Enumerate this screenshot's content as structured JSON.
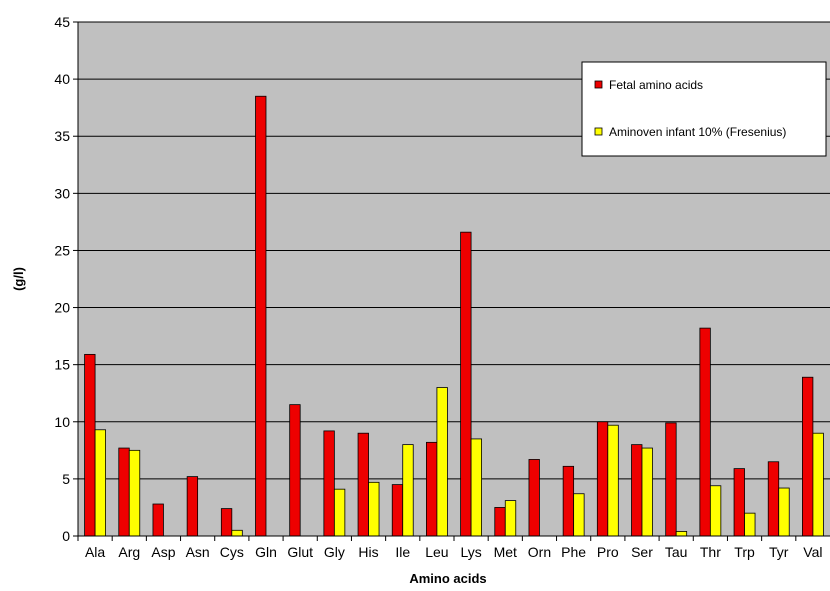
{
  "chart_data": {
    "type": "bar",
    "xlabel": "Amino acids",
    "ylabel": "(g/l)",
    "ylim": [
      0,
      45
    ],
    "yticks": [
      0,
      5,
      10,
      15,
      20,
      25,
      30,
      35,
      40,
      45
    ],
    "grid": true,
    "legend_position": "top-right",
    "categories": [
      "Ala",
      "Arg",
      "Asp",
      "Asn",
      "Cys",
      "Gln",
      "Glut",
      "Gly",
      "His",
      "Ile",
      "Leu",
      "Lys",
      "Met",
      "Orn",
      "Phe",
      "Pro",
      "Ser",
      "Tau",
      "Thr",
      "Trp",
      "Tyr",
      "Val"
    ],
    "series": [
      {
        "name": "Fetal amino acids",
        "color": "#ee0000",
        "values": [
          15.9,
          7.7,
          2.8,
          5.2,
          2.4,
          38.5,
          11.5,
          9.2,
          9.0,
          4.5,
          8.2,
          26.6,
          2.5,
          6.7,
          6.1,
          10.0,
          8.0,
          9.9,
          18.2,
          5.9,
          6.5,
          13.9
        ]
      },
      {
        "name": "Aminoven infant 10% (Fresenius)",
        "color": "#ffff00",
        "values": [
          9.3,
          7.5,
          0,
          0,
          0.5,
          0,
          0,
          4.1,
          4.7,
          8.0,
          13.0,
          8.5,
          3.1,
          0,
          3.7,
          9.7,
          7.7,
          0.4,
          4.4,
          2.0,
          4.2,
          9.0
        ]
      }
    ],
    "plot_background": "#c0c0c0"
  }
}
